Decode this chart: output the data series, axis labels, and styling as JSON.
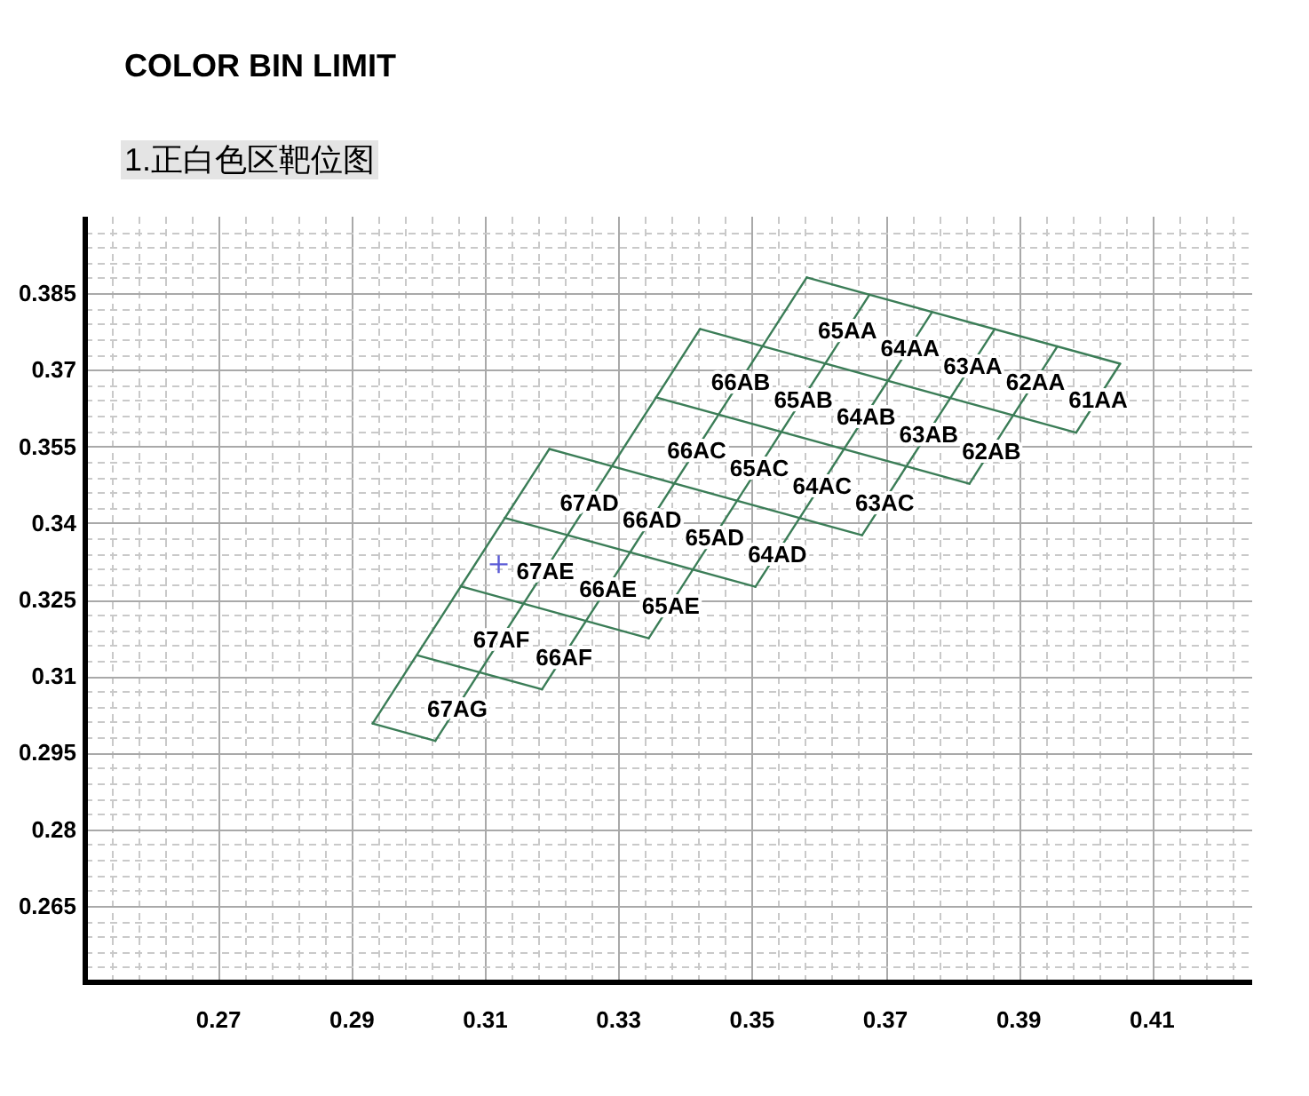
{
  "chart_data": {
    "type": "line",
    "title": "COLOR BIN LIMIT",
    "subtitle": "1.正白色区靶位图",
    "xlim": [
      0.25,
      0.425
    ],
    "ylim": [
      0.25,
      0.4
    ],
    "xticks": [
      {
        "value": 0.254,
        "label": null
      },
      {
        "value": 0.258,
        "label": null
      },
      {
        "value": 0.262,
        "label": null
      },
      {
        "value": 0.266,
        "label": null
      },
      0.27,
      {
        "value": 0.274,
        "label": null
      },
      {
        "value": 0.278,
        "label": null
      },
      {
        "value": 0.282,
        "label": null
      },
      {
        "value": 0.286,
        "label": null
      },
      0.29,
      {
        "value": 0.294,
        "label": null
      },
      {
        "value": 0.298,
        "label": null
      },
      {
        "value": 0.302,
        "label": null
      },
      {
        "value": 0.306,
        "label": null
      },
      0.31,
      {
        "value": 0.314,
        "label": null
      },
      {
        "value": 0.318,
        "label": null
      },
      {
        "value": 0.322,
        "label": null
      },
      {
        "value": 0.326,
        "label": null
      },
      0.33,
      {
        "value": 0.334,
        "label": null
      },
      {
        "value": 0.338,
        "label": null
      },
      {
        "value": 0.342,
        "label": null
      },
      {
        "value": 0.346,
        "label": null
      },
      0.35,
      {
        "value": 0.354,
        "label": null
      },
      {
        "value": 0.358,
        "label": null
      },
      {
        "value": 0.362,
        "label": null
      },
      {
        "value": 0.366,
        "label": null
      },
      0.37,
      {
        "value": 0.374,
        "label": null
      },
      {
        "value": 0.378,
        "label": null
      },
      {
        "value": 0.382,
        "label": null
      },
      {
        "value": 0.386,
        "label": null
      },
      0.39,
      {
        "value": 0.394,
        "label": null
      },
      {
        "value": 0.398,
        "label": null
      },
      {
        "value": 0.402,
        "label": null
      },
      {
        "value": 0.406,
        "label": null
      },
      0.41,
      {
        "value": 0.414,
        "label": null
      },
      {
        "value": 0.418,
        "label": null
      },
      {
        "value": 0.422,
        "label": null
      }
    ],
    "yticks": [
      {
        "value": 0.253,
        "label": null
      },
      {
        "value": 0.256,
        "label": null
      },
      {
        "value": 0.259,
        "label": null
      },
      {
        "value": 0.262,
        "label": null
      },
      0.265,
      {
        "value": 0.268,
        "label": null
      },
      {
        "value": 0.271,
        "label": null
      },
      {
        "value": 0.274,
        "label": null
      },
      {
        "value": 0.277,
        "label": null
      },
      0.28,
      {
        "value": 0.283,
        "label": null
      },
      {
        "value": 0.286,
        "label": null
      },
      {
        "value": 0.289,
        "label": null
      },
      {
        "value": 0.292,
        "label": null
      },
      0.295,
      {
        "value": 0.298,
        "label": null
      },
      {
        "value": 0.301,
        "label": null
      },
      {
        "value": 0.304,
        "label": null
      },
      {
        "value": 0.307,
        "label": null
      },
      0.31,
      {
        "value": 0.313,
        "label": null
      },
      {
        "value": 0.316,
        "label": null
      },
      {
        "value": 0.319,
        "label": null
      },
      {
        "value": 0.322,
        "label": null
      },
      0.325,
      {
        "value": 0.328,
        "label": null
      },
      {
        "value": 0.331,
        "label": null
      },
      {
        "value": 0.334,
        "label": null
      },
      {
        "value": 0.337,
        "label": null
      },
      0.34,
      {
        "value": 0.343,
        "label": null
      },
      {
        "value": 0.346,
        "label": null
      },
      {
        "value": 0.349,
        "label": null
      },
      {
        "value": 0.352,
        "label": null
      },
      0.355,
      {
        "value": 0.358,
        "label": null
      },
      {
        "value": 0.361,
        "label": null
      },
      {
        "value": 0.364,
        "label": null
      },
      {
        "value": 0.367,
        "label": null
      },
      0.37,
      {
        "value": 0.373,
        "label": null
      },
      {
        "value": 0.376,
        "label": null
      },
      {
        "value": 0.379,
        "label": null
      },
      {
        "value": 0.382,
        "label": null
      },
      0.385,
      {
        "value": 0.388,
        "label": null
      },
      {
        "value": 0.391,
        "label": null
      },
      {
        "value": 0.394,
        "label": null
      },
      {
        "value": 0.397,
        "label": null
      }
    ],
    "grid": true,
    "series": [
      {
        "color": "#3b7d57",
        "x": [
          0.3582,
          0.4052
        ],
        "values": [
          0.3881,
          0.3712
        ]
      },
      {
        "color": "#3b7d57",
        "x": [
          0.3422,
          0.3986
        ],
        "values": [
          0.378,
          0.3577
        ]
      },
      {
        "color": "#3b7d57",
        "x": [
          0.3356,
          0.3826
        ],
        "values": [
          0.3646,
          0.3477
        ]
      },
      {
        "color": "#3b7d57",
        "x": [
          0.3196,
          0.3665
        ],
        "values": [
          0.3545,
          0.3376
        ]
      },
      {
        "color": "#3b7d57",
        "x": [
          0.3129,
          0.3505
        ],
        "values": [
          0.341,
          0.3275
        ]
      },
      {
        "color": "#3b7d57",
        "x": [
          0.3063,
          0.3345
        ],
        "values": [
          0.3276,
          0.3174
        ]
      },
      {
        "color": "#3b7d57",
        "x": [
          0.2997,
          0.3185
        ],
        "values": [
          0.3141,
          0.3074
        ]
      },
      {
        "color": "#3b7d57",
        "x": [
          0.2931,
          0.3025
        ],
        "values": [
          0.3007,
          0.2973
        ]
      },
      {
        "color": "#3b7d57",
        "x": [
          0.3196,
          0.2931
        ],
        "values": [
          0.3545,
          0.3007
        ]
      },
      {
        "color": "#3b7d57",
        "x": [
          0.3422,
          0.3025
        ],
        "values": [
          0.378,
          0.2973
        ]
      },
      {
        "color": "#3b7d57",
        "x": [
          0.3582,
          0.3185
        ],
        "values": [
          0.3881,
          0.3074
        ]
      },
      {
        "color": "#3b7d57",
        "x": [
          0.3676,
          0.3345
        ],
        "values": [
          0.3847,
          0.3174
        ]
      },
      {
        "color": "#3b7d57",
        "x": [
          0.377,
          0.3505
        ],
        "values": [
          0.3813,
          0.3275
        ]
      },
      {
        "color": "#3b7d57",
        "x": [
          0.3864,
          0.3665
        ],
        "values": [
          0.378,
          0.3376
        ]
      },
      {
        "color": "#3b7d57",
        "x": [
          0.3958,
          0.3826
        ],
        "values": [
          0.3746,
          0.3477
        ]
      },
      {
        "color": "#3b7d57",
        "x": [
          0.4052,
          0.3986
        ],
        "values": [
          0.3712,
          0.3577
        ]
      },
      {
        "type": "scatter",
        "color": "#5b5bd6",
        "marker": "cross",
        "x": [
          0.312
        ],
        "values": [
          0.3319
        ]
      }
    ],
    "annotations": [
      {
        "text": "65AA",
        "x": 0.3643,
        "y": 0.378
      },
      {
        "text": "64AA",
        "x": 0.3737,
        "y": 0.3746
      },
      {
        "text": "63AA",
        "x": 0.3831,
        "y": 0.3712
      },
      {
        "text": "62AA",
        "x": 0.3925,
        "y": 0.3679
      },
      {
        "text": "61AA",
        "x": 0.4019,
        "y": 0.3645
      },
      {
        "text": "66AB",
        "x": 0.3483,
        "y": 0.3679
      },
      {
        "text": "65AB",
        "x": 0.3577,
        "y": 0.3645
      },
      {
        "text": "64AB",
        "x": 0.3671,
        "y": 0.3612
      },
      {
        "text": "63AB",
        "x": 0.3765,
        "y": 0.3578
      },
      {
        "text": "62AB",
        "x": 0.3859,
        "y": 0.3544
      },
      {
        "text": "66AC",
        "x": 0.3417,
        "y": 0.3545
      },
      {
        "text": "65AC",
        "x": 0.3511,
        "y": 0.3511
      },
      {
        "text": "64AC",
        "x": 0.3605,
        "y": 0.3477
      },
      {
        "text": "63AC",
        "x": 0.3699,
        "y": 0.3443
      },
      {
        "text": "67AD",
        "x": 0.3256,
        "y": 0.3444
      },
      {
        "text": "66AD",
        "x": 0.335,
        "y": 0.341
      },
      {
        "text": "65AD",
        "x": 0.3444,
        "y": 0.3376
      },
      {
        "text": "64AD",
        "x": 0.3538,
        "y": 0.3342
      },
      {
        "text": "67AE",
        "x": 0.319,
        "y": 0.3309
      },
      {
        "text": "66AE",
        "x": 0.3284,
        "y": 0.3275
      },
      {
        "text": "65AE",
        "x": 0.3378,
        "y": 0.3242
      },
      {
        "text": "67AF",
        "x": 0.3124,
        "y": 0.3175
      },
      {
        "text": "66AF",
        "x": 0.3218,
        "y": 0.3141
      },
      {
        "text": "67AG",
        "x": 0.3058,
        "y": 0.304
      }
    ]
  }
}
